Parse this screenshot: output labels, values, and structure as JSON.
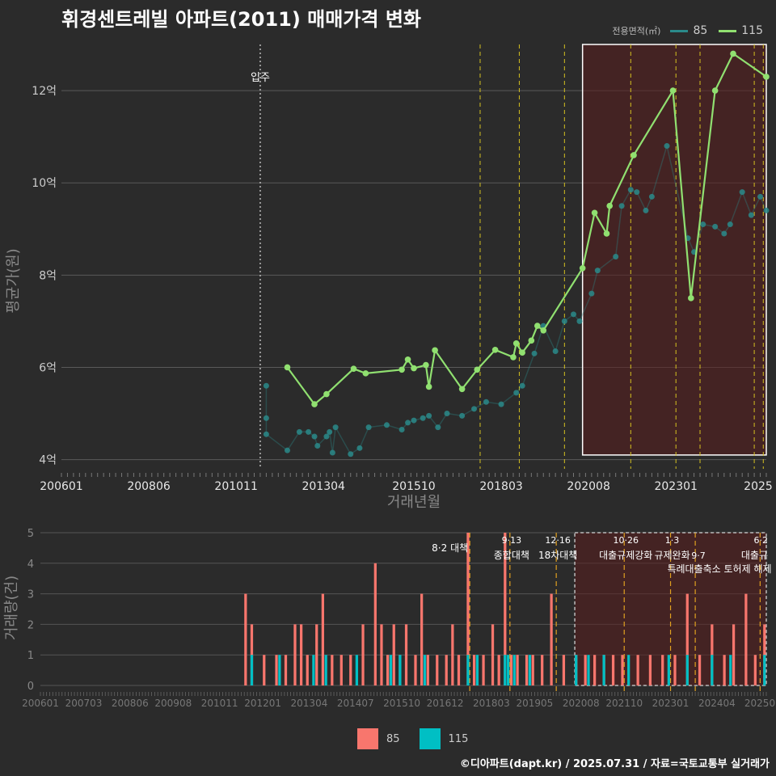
{
  "title": "휘경센트레빌 아파트(2011) 매매가격 변화",
  "legend_top": {
    "label": "전용면적(㎡)",
    "items": [
      {
        "name": "85",
        "color": "#2a8a8a"
      },
      {
        "name": "115",
        "color": "#90e070"
      }
    ]
  },
  "legend_bottom": {
    "items": [
      {
        "name": "85",
        "color": "#f8766d"
      },
      {
        "name": "115",
        "color": "#00bfc4"
      }
    ]
  },
  "footer": "©디아파트(dapt.kr) / 2025.07.31 / 자료=국토교통부 실거래가",
  "chart_data": [
    {
      "type": "line",
      "title": "휘경센트레빌 아파트(2011) 매매가격 변화",
      "xlabel": "거래년월",
      "ylabel": "평균가(원)",
      "x_tick_labels": [
        "200601",
        "200806",
        "201011",
        "201304",
        "201510",
        "201803",
        "202008",
        "202301",
        "2025"
      ],
      "y_tick_labels": [
        "4억",
        "6억",
        "8억",
        "10억",
        "12억"
      ],
      "y_ticks": [
        4,
        6,
        8,
        10,
        12
      ],
      "ylim": [
        3.8,
        13.0
      ],
      "xlim": [
        "2006-01",
        "2025-07"
      ],
      "unit": "억",
      "annotations": [
        {
          "x": "2011-07",
          "label": "입주"
        }
      ],
      "policy_lines": [
        "2017-08",
        "2018-09",
        "2019-12",
        "2021-10",
        "2023-01",
        "2023-09",
        "2025-03",
        "2025-06"
      ],
      "highlight_box": {
        "x_start": "2020-06",
        "x_end": "2025-07",
        "y_start": 4.1,
        "y_end": 13.0
      },
      "series": [
        {
          "name": "115",
          "color": "#90e070",
          "points": [
            [
              "2012-04",
              6.0
            ],
            [
              "2013-01",
              5.2
            ],
            [
              "2013-05",
              5.42
            ],
            [
              "2014-02",
              5.97
            ],
            [
              "2014-06",
              5.87
            ],
            [
              "2015-06",
              5.95
            ],
            [
              "2015-08",
              6.17
            ],
            [
              "2015-10",
              5.98
            ],
            [
              "2016-02",
              6.05
            ],
            [
              "2016-03",
              5.58
            ],
            [
              "2016-05",
              6.37
            ],
            [
              "2017-02",
              5.53
            ],
            [
              "2017-07",
              5.95
            ],
            [
              "2018-01",
              6.38
            ],
            [
              "2018-07",
              6.22
            ],
            [
              "2018-08",
              6.52
            ],
            [
              "2018-10",
              6.32
            ],
            [
              "2019-01",
              6.58
            ],
            [
              "2019-03",
              6.9
            ],
            [
              "2019-05",
              6.8
            ],
            [
              "2020-06",
              8.15
            ],
            [
              "2020-10",
              9.35
            ],
            [
              "2021-02",
              8.9
            ],
            [
              "2021-03",
              9.5
            ],
            [
              "2021-11",
              10.6
            ],
            [
              "2022-12",
              12.0
            ],
            [
              "2023-06",
              7.5
            ],
            [
              "2024-02",
              12.0
            ],
            [
              "2024-08",
              12.8
            ],
            [
              "2025-07",
              12.3
            ]
          ]
        },
        {
          "name": "85",
          "color": "#2a8a8a",
          "points": [
            [
              "2011-09",
              5.6
            ],
            [
              "2011-09",
              4.9
            ],
            [
              "2011-09",
              4.55
            ],
            [
              "2012-04",
              4.2
            ],
            [
              "2012-08",
              4.6
            ],
            [
              "2012-11",
              4.6
            ],
            [
              "2013-01",
              4.5
            ],
            [
              "2013-02",
              4.3
            ],
            [
              "2013-05",
              4.5
            ],
            [
              "2013-06",
              4.6
            ],
            [
              "2013-07",
              4.15
            ],
            [
              "2013-08",
              4.7
            ],
            [
              "2014-01",
              4.12
            ],
            [
              "2014-04",
              4.25
            ],
            [
              "2014-07",
              4.7
            ],
            [
              "2015-01",
              4.75
            ],
            [
              "2015-06",
              4.65
            ],
            [
              "2015-08",
              4.8
            ],
            [
              "2015-10",
              4.85
            ],
            [
              "2016-01",
              4.9
            ],
            [
              "2016-03",
              4.95
            ],
            [
              "2016-06",
              4.7
            ],
            [
              "2016-09",
              5.0
            ],
            [
              "2017-02",
              4.95
            ],
            [
              "2017-06",
              5.1
            ],
            [
              "2017-10",
              5.25
            ],
            [
              "2018-03",
              5.2
            ],
            [
              "2018-08",
              5.45
            ],
            [
              "2018-10",
              5.6
            ],
            [
              "2019-02",
              6.3
            ],
            [
              "2019-05",
              6.9
            ],
            [
              "2019-09",
              6.35
            ],
            [
              "2019-12",
              7.0
            ],
            [
              "2020-03",
              7.15
            ],
            [
              "2020-05",
              7.0
            ],
            [
              "2020-09",
              7.6
            ],
            [
              "2020-11",
              8.1
            ],
            [
              "2021-05",
              8.4
            ],
            [
              "2021-07",
              9.5
            ],
            [
              "2021-10",
              9.85
            ],
            [
              "2021-12",
              9.8
            ],
            [
              "2022-03",
              9.4
            ],
            [
              "2022-05",
              9.7
            ],
            [
              "2022-10",
              10.8
            ],
            [
              "2023-05",
              8.8
            ],
            [
              "2023-07",
              8.5
            ],
            [
              "2023-10",
              9.1
            ],
            [
              "2024-02",
              9.05
            ],
            [
              "2024-05",
              8.9
            ],
            [
              "2024-07",
              9.1
            ],
            [
              "2024-11",
              9.8
            ],
            [
              "2025-02",
              9.3
            ],
            [
              "2025-05",
              9.7
            ],
            [
              "2025-07",
              9.4
            ]
          ]
        }
      ]
    },
    {
      "type": "bar",
      "ylabel": "거래량(건)",
      "x_tick_labels": [
        "200601",
        "200703",
        "200806",
        "200908",
        "201011",
        "201201",
        "201304",
        "201407",
        "201510",
        "201612",
        "201803",
        "201905",
        "202008",
        "202110",
        "202301",
        "202404",
        "20250"
      ],
      "y_tick_labels": [
        "0",
        "1",
        "2",
        "3",
        "4",
        "5"
      ],
      "ylim": [
        0,
        5
      ],
      "policy_annotations": [
        {
          "x": "2017-08",
          "label": "8·2 대책"
        },
        {
          "x": "2018-09",
          "label": "9·13",
          "label2": "종합대책"
        },
        {
          "x": "2019-12",
          "label": "12·16",
          "label2": "18차대책"
        },
        {
          "x": "2021-10",
          "label": "10·26",
          "label2": "대출규제강화"
        },
        {
          "x": "2023-01",
          "label": "1·3",
          "label2": "규제완화"
        },
        {
          "x": "2023-09",
          "label": "9·7",
          "label2": "특례대출축소 토허제 해제"
        },
        {
          "x": "2025-06",
          "label": "6·2",
          "label2": "대출규"
        }
      ],
      "series": [
        {
          "name": "85",
          "color": "#f8766d",
          "points": [
            [
              "2011-07",
              3
            ],
            [
              "2011-09",
              2
            ],
            [
              "2012-01",
              1
            ],
            [
              "2012-05",
              1
            ],
            [
              "2012-08",
              1
            ],
            [
              "2012-11",
              2
            ],
            [
              "2013-01",
              2
            ],
            [
              "2013-03",
              1
            ],
            [
              "2013-06",
              2
            ],
            [
              "2013-08",
              3
            ],
            [
              "2013-11",
              1
            ],
            [
              "2014-02",
              1
            ],
            [
              "2014-05",
              1
            ],
            [
              "2014-09",
              2
            ],
            [
              "2015-01",
              4
            ],
            [
              "2015-03",
              2
            ],
            [
              "2015-05",
              1
            ],
            [
              "2015-07",
              2
            ],
            [
              "2015-09",
              1
            ],
            [
              "2015-11",
              2
            ],
            [
              "2016-02",
              1
            ],
            [
              "2016-04",
              3
            ],
            [
              "2016-06",
              1
            ],
            [
              "2016-09",
              1
            ],
            [
              "2016-12",
              1
            ],
            [
              "2017-02",
              2
            ],
            [
              "2017-04",
              1
            ],
            [
              "2017-07",
              5
            ],
            [
              "2017-09",
              1
            ],
            [
              "2017-12",
              1
            ],
            [
              "2018-03",
              2
            ],
            [
              "2018-05",
              1
            ],
            [
              "2018-07",
              5
            ],
            [
              "2018-09",
              1
            ],
            [
              "2018-11",
              1
            ],
            [
              "2019-02",
              1
            ],
            [
              "2019-04",
              1
            ],
            [
              "2019-07",
              1
            ],
            [
              "2019-10",
              3
            ],
            [
              "2020-02",
              1
            ],
            [
              "2020-06",
              1
            ],
            [
              "2020-09",
              1
            ],
            [
              "2020-12",
              1
            ],
            [
              "2021-03",
              1
            ],
            [
              "2021-06",
              1
            ],
            [
              "2021-09",
              1
            ],
            [
              "2022-02",
              1
            ],
            [
              "2022-06",
              1
            ],
            [
              "2022-10",
              1
            ],
            [
              "2023-02",
              1
            ],
            [
              "2023-06",
              3
            ],
            [
              "2023-10",
              1
            ],
            [
              "2024-02",
              2
            ],
            [
              "2024-06",
              1
            ],
            [
              "2024-09",
              2
            ],
            [
              "2025-01",
              3
            ],
            [
              "2025-04",
              1
            ],
            [
              "2025-07",
              2
            ]
          ]
        },
        {
          "name": "115",
          "color": "#00bfc4",
          "points": [
            [
              "2011-09",
              1
            ],
            [
              "2012-06",
              1
            ],
            [
              "2013-05",
              1
            ],
            [
              "2013-09",
              1
            ],
            [
              "2014-07",
              1
            ],
            [
              "2015-06",
              1
            ],
            [
              "2015-09",
              2
            ],
            [
              "2016-05",
              1
            ],
            [
              "2017-07",
              1
            ],
            [
              "2017-10",
              1
            ],
            [
              "2018-07",
              1
            ],
            [
              "2018-08",
              3
            ],
            [
              "2018-10",
              1
            ],
            [
              "2019-03",
              1
            ],
            [
              "2020-06",
              1
            ],
            [
              "2020-10",
              1
            ],
            [
              "2021-03",
              1
            ],
            [
              "2021-11",
              1
            ],
            [
              "2022-12",
              1
            ],
            [
              "2023-06",
              1
            ],
            [
              "2024-02",
              1
            ],
            [
              "2024-08",
              1
            ],
            [
              "2025-07",
              1
            ]
          ]
        }
      ]
    }
  ]
}
